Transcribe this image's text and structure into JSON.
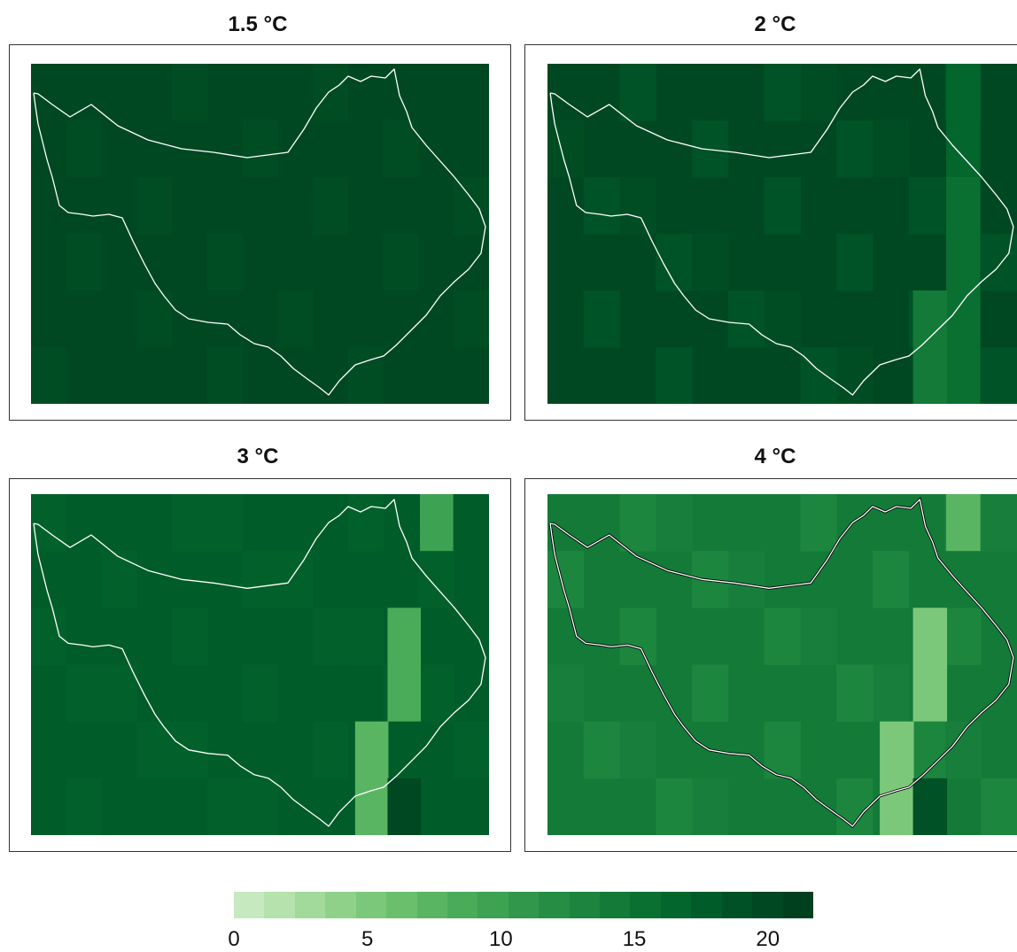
{
  "panels": [
    {
      "title": "1.5 °C",
      "level": 21,
      "patches": []
    },
    {
      "title": "2 °C",
      "level": 20,
      "patches": [
        {
          "c": [
            13,
            12
          ],
          "r": [
            0,
            6
          ],
          "v": 17
        },
        {
          "c": [
            12,
            13
          ],
          "r": [
            2,
            6
          ],
          "v": 16
        },
        {
          "c": [
            11,
            12
          ],
          "r": [
            4,
            6
          ],
          "v": 15
        }
      ]
    },
    {
      "title": "3 °C",
      "level": 18,
      "patches": [
        {
          "c": [
            12,
            13
          ],
          "r": [
            0,
            1
          ],
          "v": 10
        },
        {
          "c": [
            11,
            12
          ],
          "r": [
            2,
            4
          ],
          "v": 9
        },
        {
          "c": [
            10,
            11
          ],
          "r": [
            4,
            6
          ],
          "v": 7
        },
        {
          "c": [
            11,
            12
          ],
          "r": [
            5,
            6
          ],
          "v": 20
        }
      ]
    },
    {
      "title": "4 °C",
      "level": 14,
      "patches": [
        {
          "c": [
            12,
            13
          ],
          "r": [
            0,
            1
          ],
          "v": 7
        },
        {
          "c": [
            11,
            12
          ],
          "r": [
            2,
            4
          ],
          "v": 5
        },
        {
          "c": [
            10,
            11
          ],
          "r": [
            4,
            6
          ],
          "v": 5
        },
        {
          "c": [
            11,
            12
          ],
          "r": [
            5,
            6
          ],
          "v": 19
        }
      ]
    }
  ],
  "colorbar": {
    "colors": [
      "#c7e9c0",
      "#b5e2ad",
      "#a2da9b",
      "#90d18a",
      "#7cc87a",
      "#6abf6d",
      "#5ab562",
      "#4aab59",
      "#3da252",
      "#31984b",
      "#258e44",
      "#1c843e",
      "#137a38",
      "#0a7032",
      "#03662d",
      "#005c29",
      "#005226",
      "#004822",
      "#00401e"
    ],
    "ticks": [
      {
        "label": "0",
        "value": 0
      },
      {
        "label": "5",
        "value": 5
      },
      {
        "label": "10",
        "value": 10
      },
      {
        "label": "15",
        "value": 15
      },
      {
        "label": "20",
        "value": 20
      }
    ],
    "min": 0,
    "max": 21.7
  }
}
